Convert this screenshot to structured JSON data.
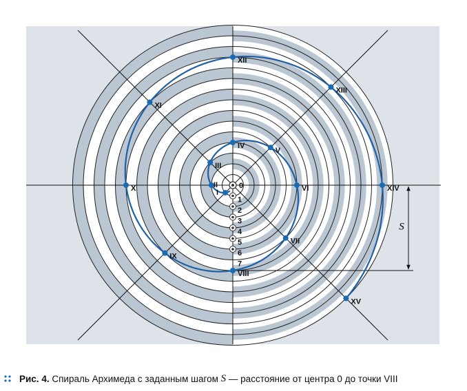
{
  "figure": {
    "center_label": "0",
    "axis_marks": [
      "1",
      "2",
      "3",
      "4",
      "5",
      "6",
      "7"
    ],
    "points": [
      "I",
      "II",
      "III",
      "IV",
      "V",
      "VI",
      "VII",
      "VIII",
      "IX",
      "X",
      "XI",
      "XII",
      "XIII",
      "XIV",
      "XV"
    ],
    "step_label": "S"
  },
  "caption": {
    "number": "Рис. 4.",
    "text_before": "Спираль Архимеда с заданным шагом",
    "symbol": "S",
    "text_after": "— расстояние от центра 0 до точки VIII"
  }
}
